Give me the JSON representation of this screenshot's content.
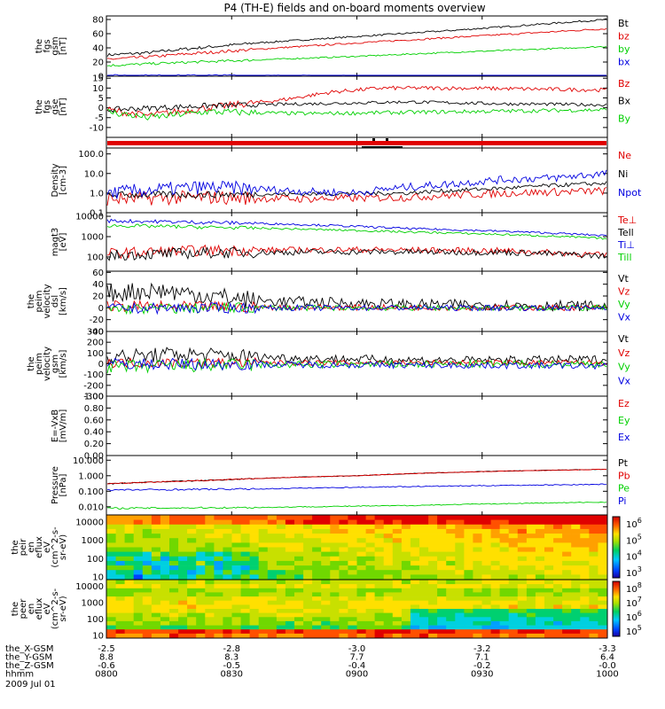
{
  "title": "P4 (TH-E) fields and on-board moments overview",
  "colors": {
    "black": "#000000",
    "red": "#e00000",
    "green": "#00d000",
    "blue": "#0000e0"
  },
  "chart_data": [
    {
      "type": "line",
      "ylabel_lines": [
        "the",
        "fgs",
        "gsm",
        "[nT]"
      ],
      "ylim": [
        0,
        85
      ],
      "yticks": [
        {
          "v": 0,
          "l": "0"
        },
        {
          "v": 20,
          "l": "20"
        },
        {
          "v": 40,
          "l": "40"
        },
        {
          "v": 60,
          "l": "60"
        },
        {
          "v": 80,
          "l": "80"
        }
      ],
      "series": [
        {
          "name": "Bt",
          "color": "black",
          "noise": 1.2,
          "x": [
            0,
            0.08,
            0.15,
            0.3,
            0.5,
            0.7,
            0.9,
            1
          ],
          "y": [
            30,
            33,
            38,
            47,
            56,
            65,
            75,
            80
          ]
        },
        {
          "name": "bz",
          "color": "red",
          "noise": 1.2,
          "x": [
            0,
            0.08,
            0.15,
            0.3,
            0.5,
            0.7,
            0.9,
            1
          ],
          "y": [
            24,
            27,
            31,
            38,
            47,
            55,
            63,
            67
          ]
        },
        {
          "name": "by",
          "color": "green",
          "noise": 1,
          "x": [
            0,
            0.1,
            0.3,
            0.5,
            0.7,
            0.9,
            1
          ],
          "y": [
            15,
            18,
            23,
            28,
            34,
            39,
            42
          ]
        },
        {
          "name": "bx",
          "color": "blue",
          "noise": 0.8,
          "x": [
            0,
            0.3,
            0.6,
            1
          ],
          "y": [
            1,
            1,
            0.5,
            0
          ]
        }
      ]
    },
    {
      "type": "line",
      "ylabel_lines": [
        "the",
        "fgs",
        "gse",
        "[nT]"
      ],
      "ylim": [
        -15,
        16
      ],
      "yticks": [
        {
          "v": -10,
          "l": "-10"
        },
        {
          "v": -5,
          "l": "-5"
        },
        {
          "v": 0,
          "l": "0"
        },
        {
          "v": 5,
          "l": "5"
        },
        {
          "v": 10,
          "l": "10"
        },
        {
          "v": 15,
          "l": "15"
        }
      ],
      "series": [
        {
          "name": "Bz",
          "color": "red",
          "noise": 1,
          "x": [
            0,
            0.08,
            0.2,
            0.35,
            0.45,
            0.55,
            0.7,
            0.85,
            1
          ],
          "y": [
            -1,
            -4,
            0,
            4,
            8,
            10,
            10,
            9.5,
            9
          ]
        },
        {
          "name": "Bx",
          "color": "black",
          "noise": 0.8,
          "x": [
            0,
            0.2,
            0.4,
            0.6,
            0.8,
            1
          ],
          "y": [
            -1,
            1,
            2,
            3,
            2,
            1.5
          ]
        },
        {
          "name": "By",
          "color": "green",
          "noise": 1,
          "x": [
            0,
            0.08,
            0.2,
            0.4,
            0.7,
            1
          ],
          "y": [
            -2,
            -5,
            -2,
            -3,
            -2,
            -1
          ]
        }
      ]
    },
    {
      "type": "bar-strip",
      "label": ""
    },
    {
      "type": "line",
      "scale": "log",
      "ylabel_lines": [
        "Density",
        "[cm-3]"
      ],
      "ylim": [
        0.1,
        200
      ],
      "yticks": [
        {
          "v": 0.1,
          "l": "0.1"
        },
        {
          "v": 1,
          "l": "1.0"
        },
        {
          "v": 10,
          "l": "10.0"
        },
        {
          "v": 100,
          "l": "100.0"
        }
      ],
      "series": [
        {
          "name": "Ne",
          "color": "red",
          "noise": 0.2,
          "x": [
            0,
            0.2,
            0.4,
            0.6,
            0.8,
            1
          ],
          "y": [
            0.5,
            0.6,
            0.5,
            0.6,
            1.0,
            1.3
          ]
        },
        {
          "name": "Ni",
          "color": "black",
          "noise": 0.1,
          "x": [
            0,
            0.4,
            0.6,
            0.8,
            1
          ],
          "y": [
            0.8,
            0.9,
            1.0,
            1.8,
            3.2
          ]
        },
        {
          "name": "Npot",
          "color": "blue",
          "noise": 0.2,
          "x": [
            0,
            0.2,
            0.4,
            0.5,
            0.6,
            0.7,
            0.8,
            0.9,
            1
          ],
          "y": [
            1.0,
            2.0,
            1.2,
            1.0,
            2.0,
            3.0,
            5.0,
            6.0,
            10
          ]
        }
      ]
    },
    {
      "type": "line",
      "scale": "log",
      "ylabel_lines": [
        "magt3",
        "[eV]"
      ],
      "ylim": [
        20,
        15000
      ],
      "yticks": [
        {
          "v": 100,
          "l": "100"
        },
        {
          "v": 1000,
          "l": "1000"
        },
        {
          "v": 10000,
          "l": "10000"
        }
      ],
      "series": [
        {
          "name": "Te⊥",
          "color": "red",
          "noise": 0.15,
          "x": [
            0,
            0.2,
            0.5,
            0.8,
            1
          ],
          "y": [
            150,
            210,
            230,
            200,
            120
          ]
        },
        {
          "name": "Tell",
          "color": "black",
          "noise": 0.15,
          "x": [
            0,
            0.2,
            0.5,
            0.8,
            1
          ],
          "y": [
            120,
            160,
            180,
            170,
            110
          ]
        },
        {
          "name": "Ti⊥",
          "color": "blue",
          "noise": 0.05,
          "x": [
            0,
            0.3,
            0.6,
            1
          ],
          "y": [
            6000,
            4500,
            2500,
            1100
          ]
        },
        {
          "name": "Till",
          "color": "green",
          "noise": 0.05,
          "x": [
            0,
            0.3,
            0.6,
            1
          ],
          "y": [
            3500,
            2600,
            1700,
            800
          ]
        }
      ]
    },
    {
      "type": "line",
      "ylabel_lines": [
        "the",
        "peim",
        "velocity",
        "dsl",
        "[km/s]"
      ],
      "ylim": [
        -40,
        62
      ],
      "yticks": [
        {
          "v": -40,
          "l": "-40"
        },
        {
          "v": -20,
          "l": "-20"
        },
        {
          "v": 0,
          "l": "0"
        },
        {
          "v": 20,
          "l": "20"
        },
        {
          "v": 40,
          "l": "40"
        },
        {
          "v": 60,
          "l": "60"
        }
      ],
      "series": [
        {
          "name": "Vt",
          "color": "black",
          "noise": 9,
          "x": [
            0,
            0.1,
            0.3,
            0.6,
            1
          ],
          "y": [
            25,
            30,
            12,
            6,
            3
          ]
        },
        {
          "name": "Vz",
          "color": "red",
          "noise": 5,
          "x": [
            0,
            0.3,
            1
          ],
          "y": [
            3,
            1,
            0
          ]
        },
        {
          "name": "Vy",
          "color": "green",
          "noise": 5,
          "x": [
            0,
            0.3,
            1
          ],
          "y": [
            -2,
            0,
            0
          ]
        },
        {
          "name": "Vx",
          "color": "blue",
          "noise": 5,
          "x": [
            0,
            0.3,
            1
          ],
          "y": [
            -1,
            0,
            0
          ]
        }
      ]
    },
    {
      "type": "line",
      "ylabel_lines": [
        "the",
        "peim",
        "velocity",
        "gsm",
        "[km/s]"
      ],
      "ylim": [
        -300,
        300
      ],
      "yticks": [
        {
          "v": -300,
          "l": "-300"
        },
        {
          "v": -200,
          "l": "-200"
        },
        {
          "v": -100,
          "l": "-100"
        },
        {
          "v": 0,
          "l": "0"
        },
        {
          "v": 100,
          "l": "100"
        },
        {
          "v": 200,
          "l": "200"
        },
        {
          "v": 300,
          "l": "300"
        }
      ],
      "series": [
        {
          "name": "Vt",
          "color": "black",
          "noise": 40,
          "x": [
            0,
            0.15,
            0.4,
            0.7,
            1
          ],
          "y": [
            60,
            90,
            50,
            30,
            40
          ]
        },
        {
          "name": "Vz",
          "color": "red",
          "noise": 25,
          "x": [
            0,
            1
          ],
          "y": [
            10,
            10
          ]
        },
        {
          "name": "Vy",
          "color": "green",
          "noise": 35,
          "x": [
            0,
            0.3,
            1
          ],
          "y": [
            -30,
            -10,
            0
          ]
        },
        {
          "name": "Vx",
          "color": "blue",
          "noise": 30,
          "x": [
            0,
            1
          ],
          "y": [
            0,
            -20
          ]
        }
      ]
    },
    {
      "type": "line",
      "ylabel_lines": [
        "E=-VxB",
        "[mV/m]"
      ],
      "ylim": [
        0,
        1
      ],
      "yticks": [
        {
          "v": 0,
          "l": "0.00"
        },
        {
          "v": 0.2,
          "l": "0.20"
        },
        {
          "v": 0.4,
          "l": "0.40"
        },
        {
          "v": 0.6,
          "l": "0.60"
        },
        {
          "v": 0.8,
          "l": "0.80"
        },
        {
          "v": 1,
          "l": "1.00"
        }
      ],
      "series": [
        {
          "name": "Ez",
          "color": "red",
          "draw": false
        },
        {
          "name": "Ey",
          "color": "green",
          "draw": false
        },
        {
          "name": "Ex",
          "color": "blue",
          "draw": false
        }
      ]
    },
    {
      "type": "line",
      "scale": "log",
      "ylabel_lines": [
        "Pressure",
        "[nPa]"
      ],
      "ylim": [
        0.003,
        20
      ],
      "yticks": [
        {
          "v": 0.01,
          "l": "0.010"
        },
        {
          "v": 0.1,
          "l": "0.100"
        },
        {
          "v": 1,
          "l": "1.000"
        },
        {
          "v": 10,
          "l": "10.000"
        }
      ],
      "series": [
        {
          "name": "Pt",
          "color": "black",
          "noise": 0.02,
          "x": [
            0,
            0.2,
            0.5,
            0.8,
            1
          ],
          "y": [
            0.3,
            0.5,
            1.0,
            2.0,
            2.6
          ]
        },
        {
          "name": "Pb",
          "color": "red",
          "noise": 0.02,
          "x": [
            0,
            0.2,
            0.5,
            0.8,
            1
          ],
          "y": [
            0.3,
            0.5,
            1.0,
            2.0,
            2.6
          ]
        },
        {
          "name": "Pe",
          "color": "green",
          "noise": 0.03,
          "x": [
            0,
            0.3,
            0.6,
            1
          ],
          "y": [
            0.008,
            0.009,
            0.012,
            0.02
          ]
        },
        {
          "name": "Pi",
          "color": "blue",
          "noise": 0.03,
          "x": [
            0,
            0.3,
            0.6,
            1
          ],
          "y": [
            0.12,
            0.14,
            0.2,
            0.28
          ]
        }
      ]
    },
    {
      "type": "heatmap",
      "ylabel_lines": [
        "the",
        "peir",
        "en",
        "eflux",
        "eV",
        "(cm^2-s-",
        "sr-eV)"
      ],
      "ylim": [
        7,
        25000
      ],
      "scale": "log",
      "yticks": [
        {
          "v": 10,
          "l": "10"
        },
        {
          "v": 100,
          "l": "100"
        },
        {
          "v": 1000,
          "l": "1000"
        },
        {
          "v": 10000,
          "l": "10000"
        }
      ],
      "colorbar_ticks": [
        "10^3",
        "10^4",
        "10^5",
        "10^6"
      ]
    },
    {
      "type": "heatmap",
      "ylabel_lines": [
        "the",
        "peer",
        "en",
        "eflux",
        "eV",
        "(cm^2-s-",
        "sr-eV)"
      ],
      "ylim": [
        7,
        25000
      ],
      "scale": "log",
      "yticks": [
        {
          "v": 10,
          "l": "10"
        },
        {
          "v": 100,
          "l": "100"
        },
        {
          "v": 1000,
          "l": "1000"
        },
        {
          "v": 10000,
          "l": "10000"
        }
      ],
      "colorbar_ticks": [
        "10^5",
        "10^6",
        "10^7",
        "10^8"
      ]
    }
  ],
  "x_axis": {
    "rows": [
      {
        "name": "the_X-GSM",
        "values": [
          "-2.5",
          "-2.8",
          "-3.0",
          "-3.2",
          "-3.3"
        ]
      },
      {
        "name": "the_Y-GSM",
        "values": [
          "8.8",
          "8.3",
          "7.7",
          "7.1",
          "6.4"
        ]
      },
      {
        "name": "the_Z-GSM",
        "values": [
          "-0.6",
          "-0.5",
          "-0.4",
          "-0.2",
          "-0.0"
        ]
      },
      {
        "name": "hhmm",
        "values": [
          "0800",
          "0830",
          "0900",
          "0930",
          "1000"
        ]
      }
    ],
    "date": "2009 Jul 01"
  }
}
